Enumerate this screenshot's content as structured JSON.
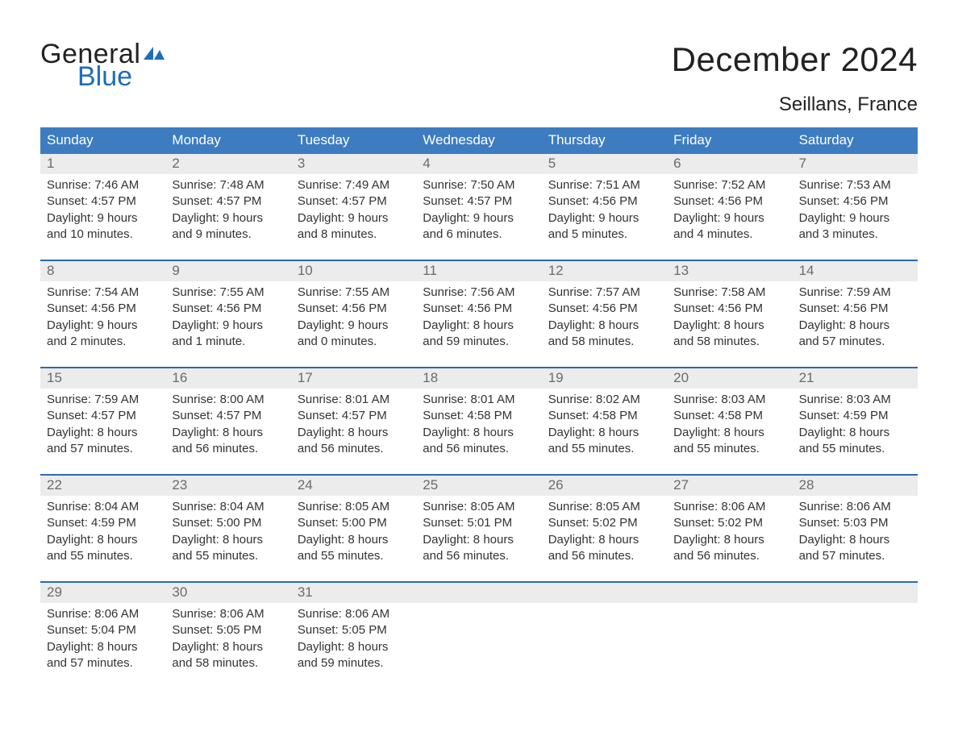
{
  "logo": {
    "word1": "General",
    "word2": "Blue",
    "flag_color": "#1f6db8"
  },
  "title": "December 2024",
  "location": "Seillans, France",
  "colors": {
    "header_blue": "#3d7cc0",
    "accent_blue": "#2a6bb0",
    "day_bg": "#ececec",
    "logo_blue": "#1f6db8"
  },
  "weekdays": [
    "Sunday",
    "Monday",
    "Tuesday",
    "Wednesday",
    "Thursday",
    "Friday",
    "Saturday"
  ],
  "labels": {
    "sunrise": "Sunrise:",
    "sunset": "Sunset:",
    "daylight": "Daylight:"
  },
  "weeks": [
    [
      {
        "n": "1",
        "sunrise": "7:46 AM",
        "sunset": "4:57 PM",
        "daylight1": "9 hours",
        "daylight2": "and 10 minutes."
      },
      {
        "n": "2",
        "sunrise": "7:48 AM",
        "sunset": "4:57 PM",
        "daylight1": "9 hours",
        "daylight2": "and 9 minutes."
      },
      {
        "n": "3",
        "sunrise": "7:49 AM",
        "sunset": "4:57 PM",
        "daylight1": "9 hours",
        "daylight2": "and 8 minutes."
      },
      {
        "n": "4",
        "sunrise": "7:50 AM",
        "sunset": "4:57 PM",
        "daylight1": "9 hours",
        "daylight2": "and 6 minutes."
      },
      {
        "n": "5",
        "sunrise": "7:51 AM",
        "sunset": "4:56 PM",
        "daylight1": "9 hours",
        "daylight2": "and 5 minutes."
      },
      {
        "n": "6",
        "sunrise": "7:52 AM",
        "sunset": "4:56 PM",
        "daylight1": "9 hours",
        "daylight2": "and 4 minutes."
      },
      {
        "n": "7",
        "sunrise": "7:53 AM",
        "sunset": "4:56 PM",
        "daylight1": "9 hours",
        "daylight2": "and 3 minutes."
      }
    ],
    [
      {
        "n": "8",
        "sunrise": "7:54 AM",
        "sunset": "4:56 PM",
        "daylight1": "9 hours",
        "daylight2": "and 2 minutes."
      },
      {
        "n": "9",
        "sunrise": "7:55 AM",
        "sunset": "4:56 PM",
        "daylight1": "9 hours",
        "daylight2": "and 1 minute."
      },
      {
        "n": "10",
        "sunrise": "7:55 AM",
        "sunset": "4:56 PM",
        "daylight1": "9 hours",
        "daylight2": "and 0 minutes."
      },
      {
        "n": "11",
        "sunrise": "7:56 AM",
        "sunset": "4:56 PM",
        "daylight1": "8 hours",
        "daylight2": "and 59 minutes."
      },
      {
        "n": "12",
        "sunrise": "7:57 AM",
        "sunset": "4:56 PM",
        "daylight1": "8 hours",
        "daylight2": "and 58 minutes."
      },
      {
        "n": "13",
        "sunrise": "7:58 AM",
        "sunset": "4:56 PM",
        "daylight1": "8 hours",
        "daylight2": "and 58 minutes."
      },
      {
        "n": "14",
        "sunrise": "7:59 AM",
        "sunset": "4:56 PM",
        "daylight1": "8 hours",
        "daylight2": "and 57 minutes."
      }
    ],
    [
      {
        "n": "15",
        "sunrise": "7:59 AM",
        "sunset": "4:57 PM",
        "daylight1": "8 hours",
        "daylight2": "and 57 minutes."
      },
      {
        "n": "16",
        "sunrise": "8:00 AM",
        "sunset": "4:57 PM",
        "daylight1": "8 hours",
        "daylight2": "and 56 minutes."
      },
      {
        "n": "17",
        "sunrise": "8:01 AM",
        "sunset": "4:57 PM",
        "daylight1": "8 hours",
        "daylight2": "and 56 minutes."
      },
      {
        "n": "18",
        "sunrise": "8:01 AM",
        "sunset": "4:58 PM",
        "daylight1": "8 hours",
        "daylight2": "and 56 minutes."
      },
      {
        "n": "19",
        "sunrise": "8:02 AM",
        "sunset": "4:58 PM",
        "daylight1": "8 hours",
        "daylight2": "and 55 minutes."
      },
      {
        "n": "20",
        "sunrise": "8:03 AM",
        "sunset": "4:58 PM",
        "daylight1": "8 hours",
        "daylight2": "and 55 minutes."
      },
      {
        "n": "21",
        "sunrise": "8:03 AM",
        "sunset": "4:59 PM",
        "daylight1": "8 hours",
        "daylight2": "and 55 minutes."
      }
    ],
    [
      {
        "n": "22",
        "sunrise": "8:04 AM",
        "sunset": "4:59 PM",
        "daylight1": "8 hours",
        "daylight2": "and 55 minutes."
      },
      {
        "n": "23",
        "sunrise": "8:04 AM",
        "sunset": "5:00 PM",
        "daylight1": "8 hours",
        "daylight2": "and 55 minutes."
      },
      {
        "n": "24",
        "sunrise": "8:05 AM",
        "sunset": "5:00 PM",
        "daylight1": "8 hours",
        "daylight2": "and 55 minutes."
      },
      {
        "n": "25",
        "sunrise": "8:05 AM",
        "sunset": "5:01 PM",
        "daylight1": "8 hours",
        "daylight2": "and 56 minutes."
      },
      {
        "n": "26",
        "sunrise": "8:05 AM",
        "sunset": "5:02 PM",
        "daylight1": "8 hours",
        "daylight2": "and 56 minutes."
      },
      {
        "n": "27",
        "sunrise": "8:06 AM",
        "sunset": "5:02 PM",
        "daylight1": "8 hours",
        "daylight2": "and 56 minutes."
      },
      {
        "n": "28",
        "sunrise": "8:06 AM",
        "sunset": "5:03 PM",
        "daylight1": "8 hours",
        "daylight2": "and 57 minutes."
      }
    ],
    [
      {
        "n": "29",
        "sunrise": "8:06 AM",
        "sunset": "5:04 PM",
        "daylight1": "8 hours",
        "daylight2": "and 57 minutes."
      },
      {
        "n": "30",
        "sunrise": "8:06 AM",
        "sunset": "5:05 PM",
        "daylight1": "8 hours",
        "daylight2": "and 58 minutes."
      },
      {
        "n": "31",
        "sunrise": "8:06 AM",
        "sunset": "5:05 PM",
        "daylight1": "8 hours",
        "daylight2": "and 59 minutes."
      },
      null,
      null,
      null,
      null
    ]
  ]
}
